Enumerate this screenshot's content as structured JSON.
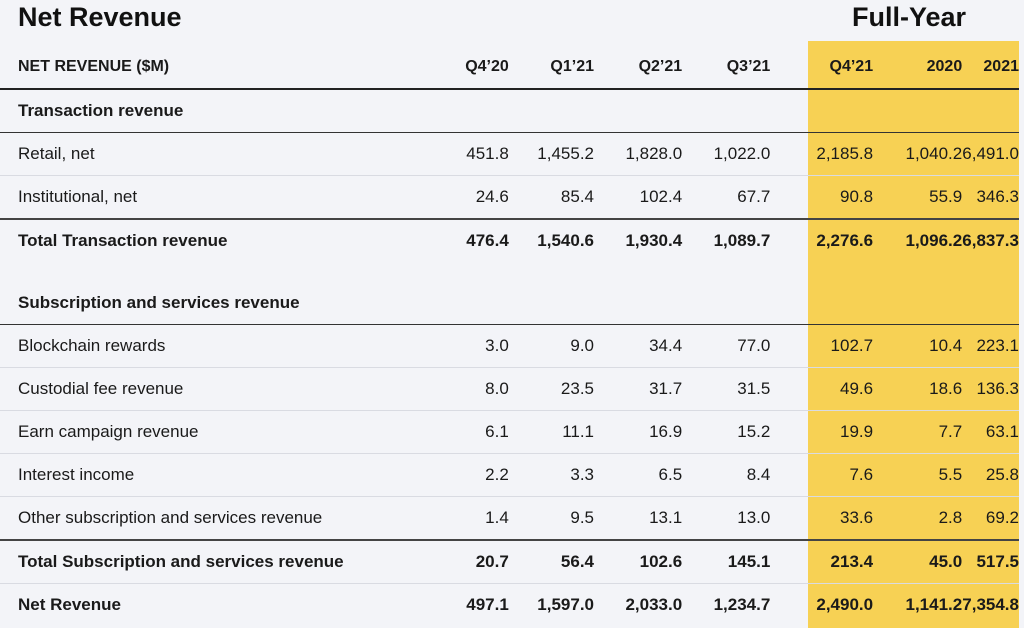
{
  "title": "Net Revenue",
  "full_year_title": "Full-Year",
  "highlight_color": "#f7d154",
  "header": {
    "label": "NET REVENUE ($M)",
    "columns": [
      "Q4’20",
      "Q1’21",
      "Q2’21",
      "Q3’21",
      "Q4’21",
      "2020",
      "2021"
    ]
  },
  "sections": {
    "transaction": {
      "title": "Transaction revenue",
      "rows": [
        {
          "label": "Retail, net",
          "values": [
            "451.8",
            "1,455.2",
            "1,828.0",
            "1,022.0",
            "2,185.8",
            "1,040.2",
            "6,491.0"
          ]
        },
        {
          "label": "Institutional, net",
          "values": [
            "24.6",
            "85.4",
            "102.4",
            "67.7",
            "90.8",
            "55.9",
            "346.3"
          ]
        }
      ],
      "total": {
        "label": "Total Transaction revenue",
        "values": [
          "476.4",
          "1,540.6",
          "1,930.4",
          "1,089.7",
          "2,276.6",
          "1,096.2",
          "6,837.3"
        ]
      }
    },
    "subscription": {
      "title": "Subscription and services revenue",
      "rows": [
        {
          "label": "Blockchain rewards",
          "values": [
            "3.0",
            "9.0",
            "34.4",
            "77.0",
            "102.7",
            "10.4",
            "223.1"
          ]
        },
        {
          "label": "Custodial fee revenue",
          "values": [
            "8.0",
            "23.5",
            "31.7",
            "31.5",
            "49.6",
            "18.6",
            "136.3"
          ]
        },
        {
          "label": "Earn campaign revenue",
          "values": [
            "6.1",
            "11.1",
            "16.9",
            "15.2",
            "19.9",
            "7.7",
            "63.1"
          ]
        },
        {
          "label": "Interest income",
          "values": [
            "2.2",
            "3.3",
            "6.5",
            "8.4",
            "7.6",
            "5.5",
            "25.8"
          ]
        },
        {
          "label": "Other subscription and services revenue",
          "values": [
            "1.4",
            "9.5",
            "13.1",
            "13.0",
            "33.6",
            "2.8",
            "69.2"
          ]
        }
      ],
      "total": {
        "label": "Total Subscription and services revenue",
        "values": [
          "20.7",
          "56.4",
          "102.6",
          "145.1",
          "213.4",
          "45.0",
          "517.5"
        ]
      }
    }
  },
  "net_revenue": {
    "label": "Net Revenue",
    "values": [
      "497.1",
      "1,597.0",
      "2,033.0",
      "1,234.7",
      "2,490.0",
      "1,141.2",
      "7,354.8"
    ]
  }
}
